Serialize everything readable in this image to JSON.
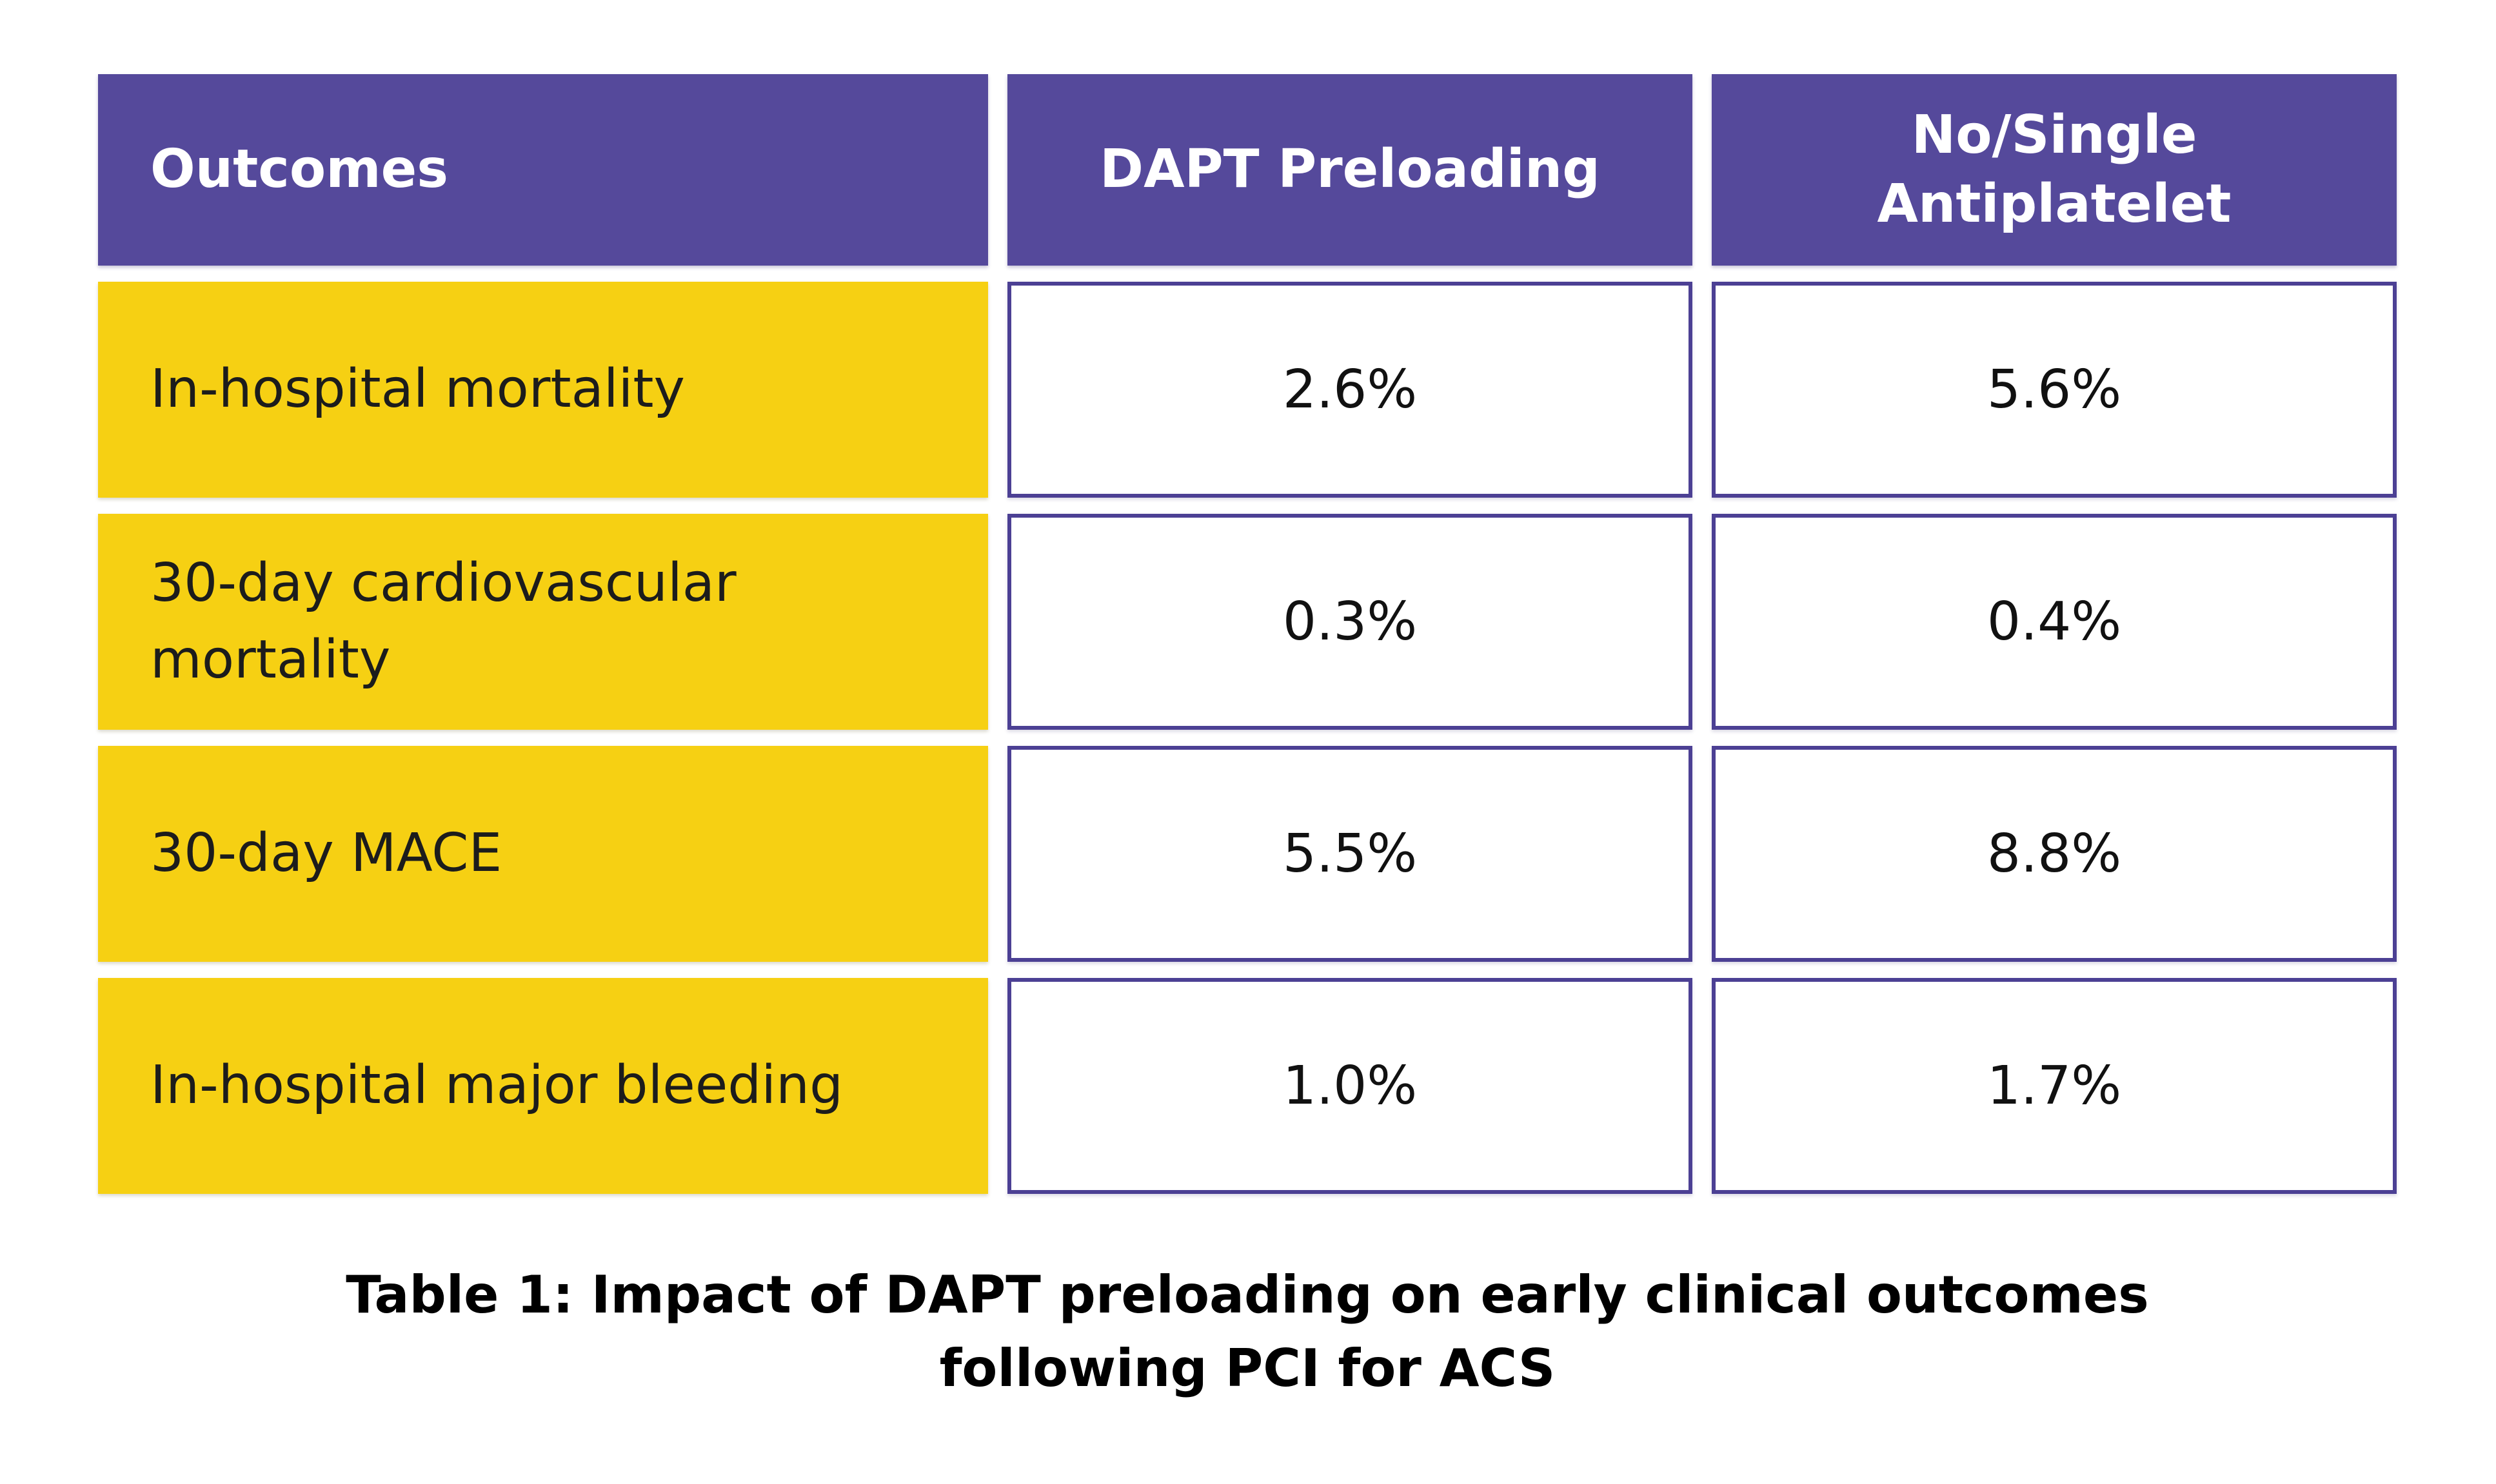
{
  "colors": {
    "header_purple": "#55499B",
    "cell_border_purple": "#4C4094",
    "label_yellow": "#F6D013",
    "header_text": "#FFFFFF",
    "body_text": "#1C1C1C",
    "value_text": "#111111",
    "caption_text": "#000000",
    "page_bg": "#FFFFFF"
  },
  "table": {
    "headers": [
      "Outcomes",
      "DAPT Preloading",
      "No/Single Antiplatelet"
    ],
    "rows": [
      {
        "label": "In-hospital mortality",
        "dapt_preloading": "2.6%",
        "no_single_antiplatelet": "5.6%"
      },
      {
        "label": "30-day cardiovascular mortality",
        "dapt_preloading": "0.3%",
        "no_single_antiplatelet": "0.4%"
      },
      {
        "label": "30-day MACE",
        "dapt_preloading": "5.5%",
        "no_single_antiplatelet": "8.8%"
      },
      {
        "label": "In-hospital major bleeding",
        "dapt_preloading": "1.0%",
        "no_single_antiplatelet": "1.7%"
      }
    ]
  },
  "caption": {
    "line1": "Table 1: Impact of DAPT preloading on early clinical outcomes",
    "line2": "following PCI for ACS"
  },
  "chart_data": {
    "type": "table",
    "title": "Table 1: Impact of DAPT preloading on early clinical outcomes following PCI for ACS",
    "columns": [
      "Outcomes",
      "DAPT Preloading",
      "No/Single Antiplatelet"
    ],
    "categories": [
      "In-hospital mortality",
      "30-day cardiovascular mortality",
      "30-day MACE",
      "In-hospital major bleeding"
    ],
    "series": [
      {
        "name": "DAPT Preloading",
        "values": [
          2.6,
          0.3,
          5.5,
          1.0
        ]
      },
      {
        "name": "No/Single Antiplatelet",
        "values": [
          5.6,
          0.4,
          8.8,
          1.7
        ]
      }
    ],
    "units": "%",
    "rows": [
      [
        "In-hospital mortality",
        "2.6%",
        "5.6%"
      ],
      [
        "30-day cardiovascular mortality",
        "0.3%",
        "0.4%"
      ],
      [
        "30-day MACE",
        "5.5%",
        "8.8%"
      ],
      [
        "In-hospital major bleeding",
        "1.0%",
        "1.7%"
      ]
    ]
  }
}
